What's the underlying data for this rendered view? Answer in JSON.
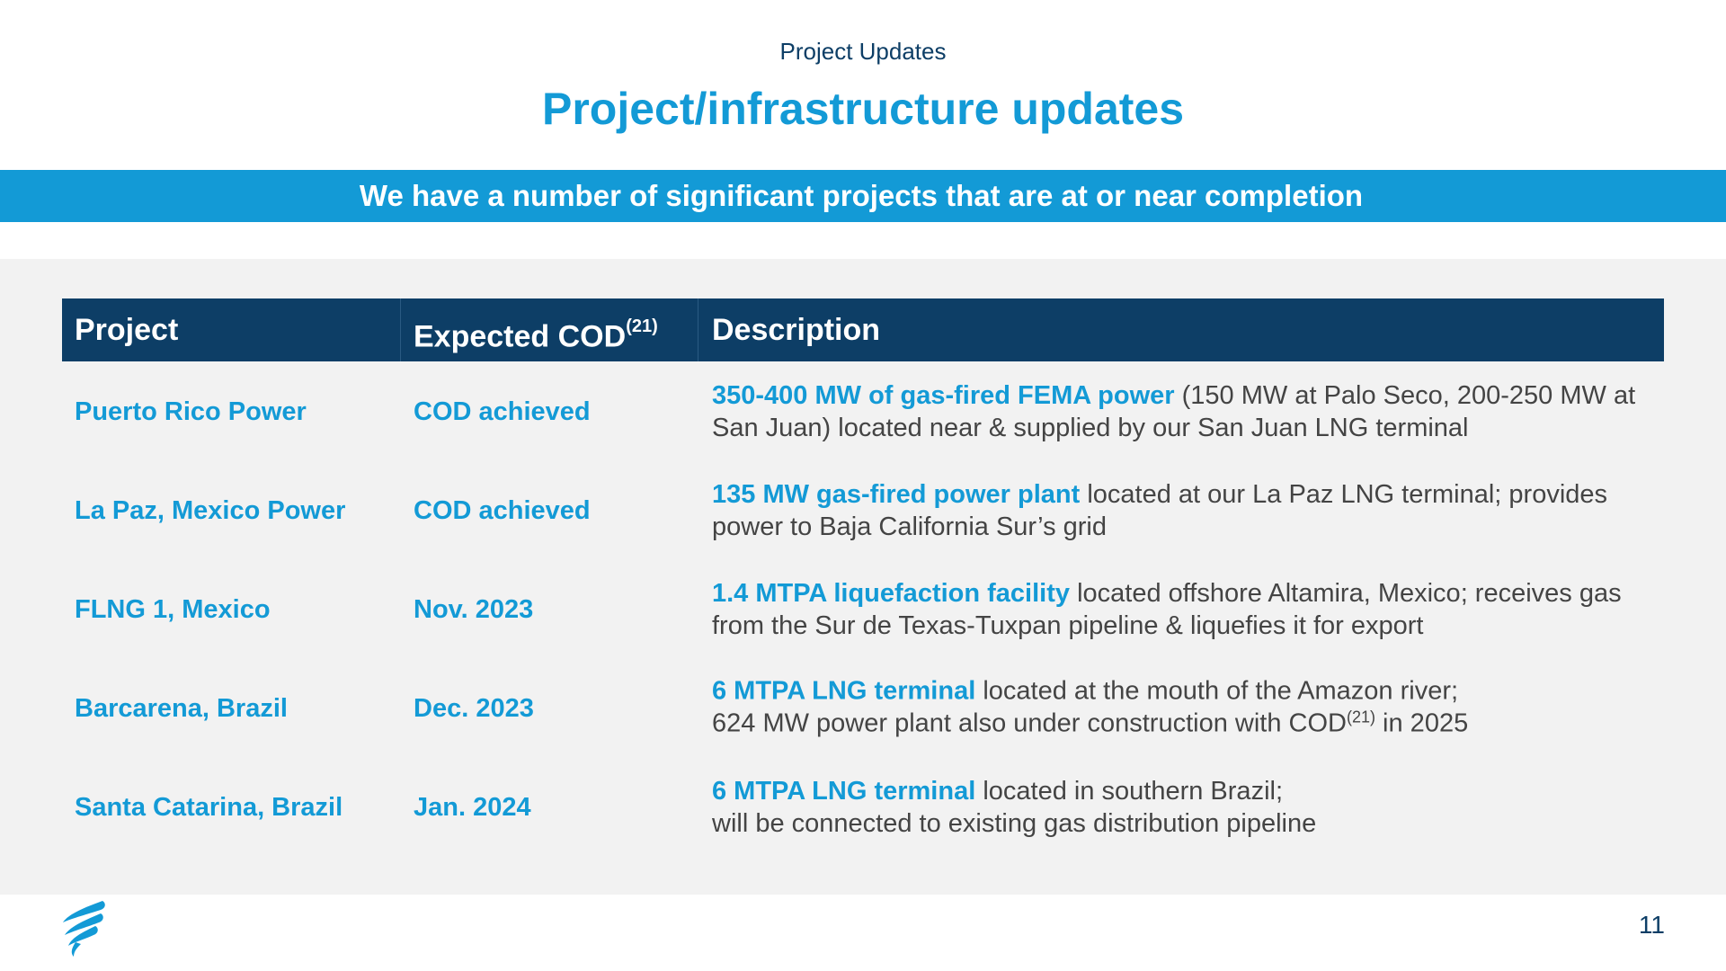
{
  "header": {
    "section": "Project Updates",
    "title": "Project/infrastructure updates",
    "banner": "We have a number of significant projects that are at or near completion"
  },
  "table": {
    "columns": {
      "project": "Project",
      "cod": "Expected COD",
      "cod_footnote": "(21)",
      "description": "Description"
    },
    "rows": [
      {
        "project": "Puerto Rico Power",
        "cod": "COD achieved",
        "desc_highlight": "350-400 MW of gas-fired FEMA power",
        "desc_rest": " (150 MW at Palo Seco, 200-250 MW at San Juan) located near & supplied by our San Juan LNG terminal"
      },
      {
        "project": "La Paz, Mexico Power",
        "cod": "COD achieved",
        "desc_highlight": "135 MW gas-fired power plant",
        "desc_rest": " located at our La Paz LNG terminal; provides power to Baja California Sur’s grid"
      },
      {
        "project": "FLNG 1, Mexico",
        "cod": "Nov. 2023",
        "desc_highlight": "1.4 MTPA liquefaction facility",
        "desc_rest": " located offshore Altamira, Mexico; receives gas from the Sur de Texas-Tuxpan pipeline & liquefies it for export"
      },
      {
        "project": "Barcarena, Brazil",
        "cod": "Dec. 2023",
        "desc_highlight": "6 MTPA LNG terminal",
        "desc_rest": " located at the mouth of the Amazon river;",
        "desc_line2_pre": "624 MW power plant also under construction with COD",
        "desc_line2_sup": "(21)",
        "desc_line2_post": " in 2025"
      },
      {
        "project": "Santa Catarina, Brazil",
        "cod": "Jan. 2024",
        "desc_highlight": "6 MTPA LNG terminal",
        "desc_rest": " located in southern Brazil;",
        "desc_line2": "will be connected to existing gas distribution pipeline"
      }
    ]
  },
  "footer": {
    "page_number": "11",
    "logo_icon": "flame-logo-icon"
  },
  "colors": {
    "accent": "#139ad6",
    "navy": "#0d3e66",
    "panel": "#f2f2f2",
    "body_text": "#444444"
  }
}
